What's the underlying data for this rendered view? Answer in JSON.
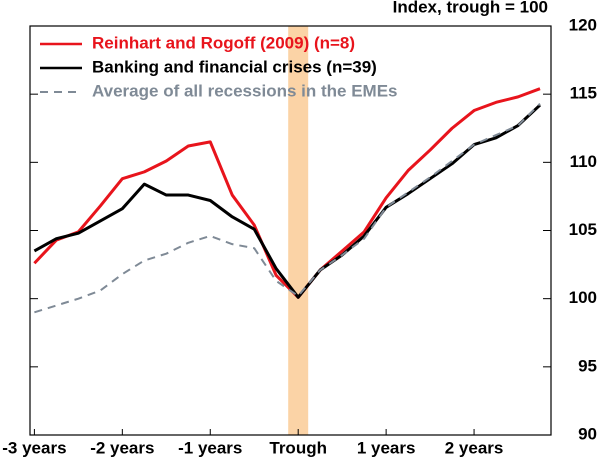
{
  "chart_data": {
    "type": "line",
    "y_label": "Index, trough = 100",
    "x": [
      -12,
      -11,
      -10,
      -9,
      -8,
      -7,
      -6,
      -5,
      -4,
      -3,
      -2,
      -1,
      0,
      1,
      2,
      3,
      4,
      5,
      6,
      7,
      8,
      9,
      10,
      11
    ],
    "xlim": [
      -12.2,
      11.5
    ],
    "xticks": [
      {
        "value": -12,
        "label": "-3 years"
      },
      {
        "value": -8,
        "label": "-2 years"
      },
      {
        "value": -4,
        "label": "-1 years"
      },
      {
        "value": 0,
        "label": "Trough"
      },
      {
        "value": 4,
        "label": "1 years"
      },
      {
        "value": 8,
        "label": "2 years"
      }
    ],
    "ylim": [
      90,
      120
    ],
    "yticks": [
      90,
      95,
      100,
      105,
      110,
      115,
      120
    ],
    "legend": "top-left",
    "series": [
      {
        "name": "Reinhart and Rogoff (2009) (n=8)",
        "color": "#e8141c",
        "dash": "solid",
        "values": [
          102.6,
          104.3,
          104.9,
          106.8,
          108.8,
          109.3,
          110.1,
          111.2,
          111.5,
          107.6,
          105.4,
          101.7,
          100.1,
          102.1,
          103.5,
          104.9,
          107.4,
          109.4,
          110.9,
          112.5,
          113.8,
          114.4,
          114.8,
          115.4
        ]
      },
      {
        "name": "Banking and financial crises (n=39)",
        "color": "#000000",
        "dash": "solid",
        "values": [
          103.5,
          104.4,
          104.8,
          105.7,
          106.6,
          108.4,
          107.6,
          107.6,
          107.2,
          106.0,
          105.1,
          102.2,
          100.1,
          102.1,
          103.2,
          104.6,
          106.7,
          107.7,
          108.8,
          109.9,
          111.3,
          111.8,
          112.7,
          114.2
        ]
      },
      {
        "name": "Average of all recessions in the EMEs",
        "color": "#7f8a96",
        "dash": "dashed",
        "values": [
          99.0,
          99.5,
          100.0,
          100.6,
          101.8,
          102.8,
          103.3,
          104.1,
          104.6,
          104.0,
          103.7,
          101.3,
          100.2,
          102.1,
          103.2,
          104.4,
          106.7,
          107.8,
          108.9,
          110.1,
          111.3,
          112.0,
          112.7,
          114.3
        ]
      }
    ]
  }
}
